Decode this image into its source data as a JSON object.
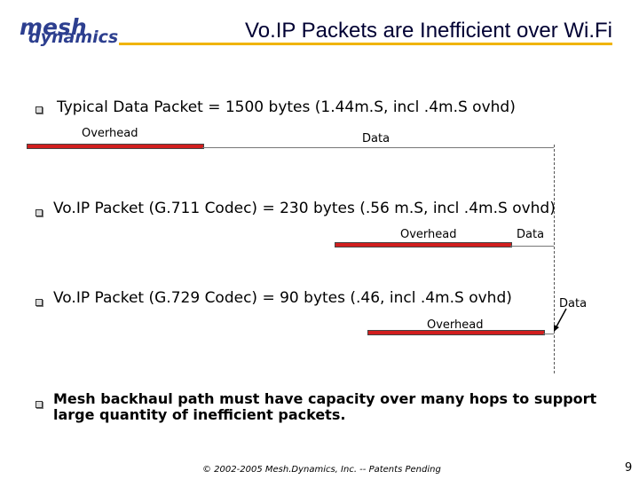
{
  "header": {
    "logo_line1": "mesh",
    "logo_line2": "dynamics",
    "title": "Vo.IP Packets are Inefficient over Wi.Fi"
  },
  "section1": {
    "text": "Typical Data Packet = 1500 bytes (1.44m.S, incl .4m.S ovhd)",
    "overhead_label": "Overhead",
    "data_label": "Data"
  },
  "section2": {
    "text": "Vo.IP Packet (G.711 Codec) = 230 bytes (.56 m.S, incl .4m.S ovhd)",
    "overhead_label": "Overhead",
    "data_label": "Data"
  },
  "section3": {
    "text": "Vo.IP Packet (G.729 Codec) = 90 bytes (.46, incl .4m.S ovhd)",
    "overhead_label": "Overhead",
    "data_label": "Data"
  },
  "section4": {
    "text": "Mesh backhaul path must have capacity over many hops to support large quantity of inefficient packets."
  },
  "footer": {
    "copyright": "© 2002-2005 Mesh.Dynamics, Inc. -- Patents Pending",
    "page_number": "9"
  },
  "colors": {
    "overhead_bar": "#d11e1e",
    "title_rule": "#f0b400",
    "logo": "#2d3f8f"
  }
}
